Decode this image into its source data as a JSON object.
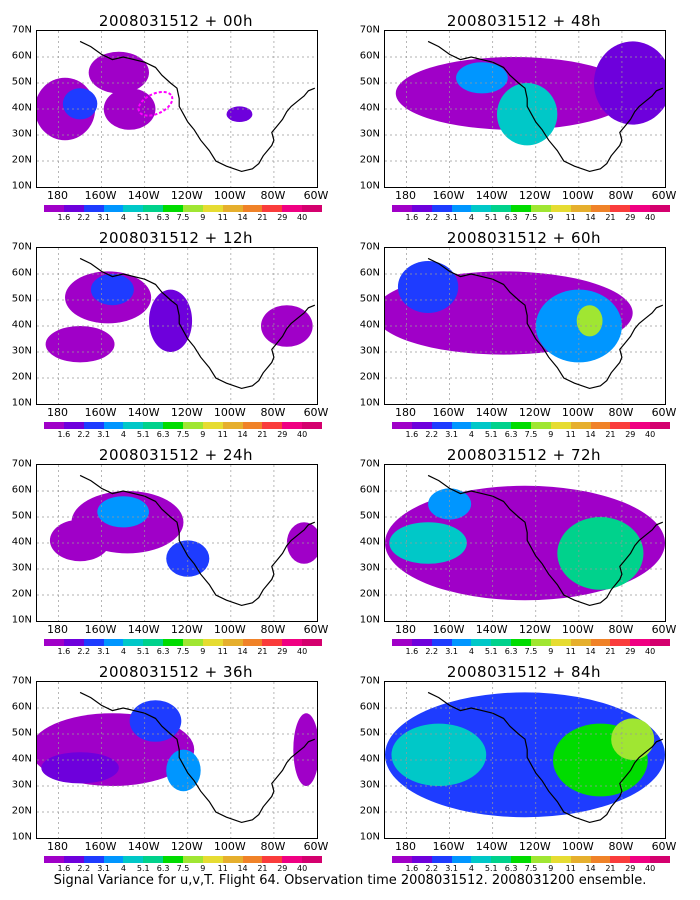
{
  "panels": [
    {
      "title": "2008031512 + 00h",
      "has_ellipse": true
    },
    {
      "title": "2008031512 + 12h",
      "has_ellipse": false
    },
    {
      "title": "2008031512 + 24h",
      "has_ellipse": false
    },
    {
      "title": "2008031512 + 36h",
      "has_ellipse": false
    },
    {
      "title": "2008031512 + 48h",
      "has_ellipse": false
    },
    {
      "title": "2008031512 + 60h",
      "has_ellipse": false
    },
    {
      "title": "2008031512 + 72h",
      "has_ellipse": false
    },
    {
      "title": "2008031512 + 84h",
      "has_ellipse": false
    }
  ],
  "y_labels": [
    "70N",
    "60N",
    "50N",
    "40N",
    "30N",
    "20N",
    "10N"
  ],
  "x_labels": [
    "180",
    "160W",
    "140W",
    "120W",
    "100W",
    "80W",
    "60W"
  ],
  "colorbar": {
    "labels": [
      "1.6",
      "2.2",
      "3.1",
      "4",
      "5.1",
      "6.3",
      "7.5",
      "9",
      "11",
      "14",
      "21",
      "29",
      "40"
    ],
    "colors": [
      "#a000c8",
      "#6e00dc",
      "#1e3cff",
      "#0096ff",
      "#00c8c8",
      "#00d28c",
      "#00dc00",
      "#a0e632",
      "#e6dc32",
      "#e6af2d",
      "#f08228",
      "#fa3c3c",
      "#f00082",
      "#d4006e"
    ]
  },
  "caption": "Signal Variance for u,v,T. Flight 64. Observation time 2008031512. 2008031200 ensemble.",
  "ellipse_color": "#ff00ff"
}
